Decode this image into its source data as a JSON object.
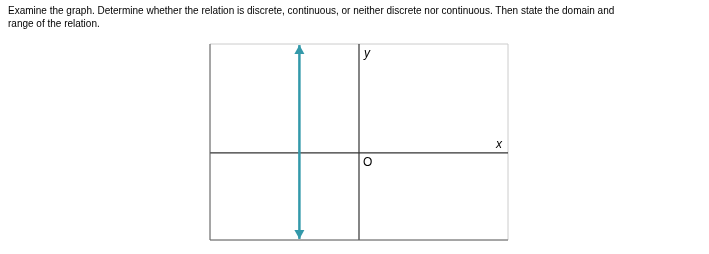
{
  "chart_data": {
    "type": "line",
    "title": "Examine the graph. Determine whether the relation is discrete, continuous, or neither discrete nor continuous. Then state the domain and\nrange of the relation.",
    "xlabel": "x",
    "ylabel": "y",
    "annotations": [
      {
        "text": "O",
        "x": 0,
        "y": 0
      }
    ],
    "x": [
      -2,
      -2
    ],
    "values": [
      -3.95,
      4.95
    ],
    "color": "#3399AA",
    "marker": "arrow",
    "xlim": [
      -5,
      5
    ],
    "ylim": [
      -4,
      5
    ],
    "xticks": [
      -5,
      -4,
      -3,
      -2,
      -1,
      0,
      1,
      2,
      3,
      4,
      5
    ],
    "yticks": [
      -4,
      -3,
      -2,
      -1,
      0,
      1,
      2,
      3,
      4,
      5
    ],
    "grid": true,
    "tick_labels": false
  }
}
